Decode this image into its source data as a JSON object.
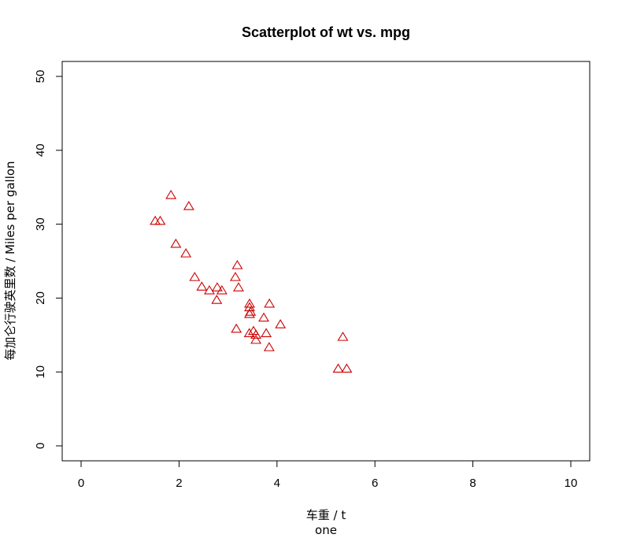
{
  "chart_data": {
    "type": "scatter",
    "title": "Scatterplot of wt vs. mpg",
    "xlabel": "车重 / t",
    "sublabel": "one",
    "ylabel": "每加仑行驶英里数 / Miles per gallon",
    "xlim": [
      0,
      10
    ],
    "ylim": [
      0,
      50
    ],
    "xticks": [
      "0",
      "2",
      "4",
      "6",
      "8",
      "10"
    ],
    "yticks": [
      "0",
      "10",
      "20",
      "30",
      "40",
      "50"
    ],
    "grid": false,
    "legend": "none",
    "marker": "triangle-open",
    "color": "#cc0000",
    "series": [
      {
        "x": [
          2.62,
          2.875,
          2.32,
          3.215,
          3.44,
          3.46,
          3.57,
          3.19,
          3.15,
          3.44,
          3.44,
          4.07,
          3.73,
          3.78,
          5.25,
          5.424,
          5.345,
          2.2,
          1.615,
          1.835,
          2.465,
          3.52,
          3.435,
          3.84,
          3.845,
          1.935,
          2.14,
          1.513,
          3.17,
          2.77,
          3.57,
          2.78
        ],
        "y": [
          21.0,
          21.0,
          22.8,
          21.4,
          18.7,
          18.1,
          14.3,
          24.4,
          22.8,
          19.2,
          17.8,
          16.4,
          17.3,
          15.2,
          10.4,
          10.4,
          14.7,
          32.4,
          30.4,
          33.9,
          21.5,
          15.5,
          15.2,
          13.3,
          19.2,
          27.3,
          26.0,
          30.4,
          15.8,
          19.7,
          15.0,
          21.4
        ]
      }
    ]
  }
}
